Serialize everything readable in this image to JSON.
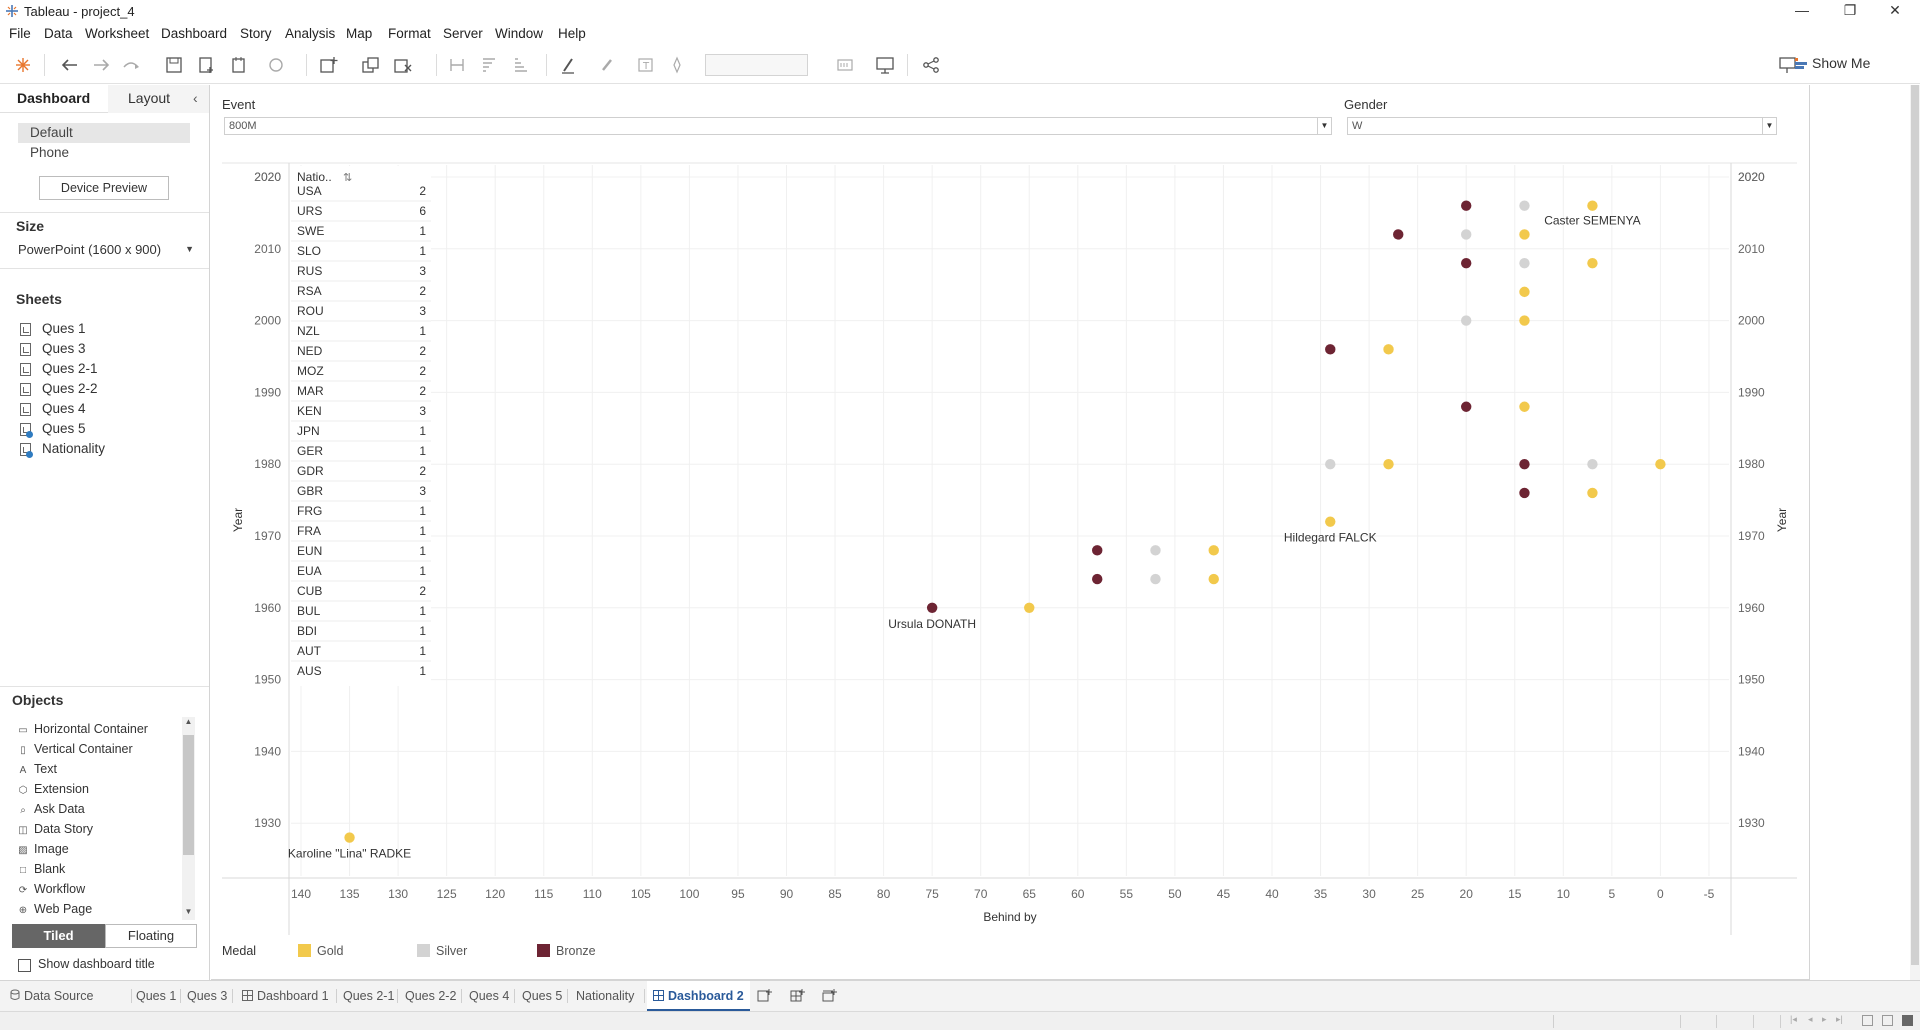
{
  "window": {
    "title": "Tableau - project_4",
    "min": "—",
    "max": "❐",
    "close": "✕"
  },
  "menu": [
    "File",
    "Data",
    "Worksheet",
    "Dashboard",
    "Story",
    "Analysis",
    "Map",
    "Format",
    "Server",
    "Window",
    "Help"
  ],
  "toolbar": {
    "show_me": "Show Me"
  },
  "left_pane": {
    "tab_dashboard": "Dashboard",
    "tab_layout": "Layout",
    "collapse_icon": "‹",
    "devices": [
      "Default",
      "Phone"
    ],
    "device_preview": "Device Preview",
    "size_heading": "Size",
    "size_value": "PowerPoint (1600 x 900)",
    "sheets_heading": "Sheets",
    "sheets": [
      "Ques 1",
      "Ques 3",
      "Ques 2-1",
      "Ques 2-2",
      "Ques 4",
      "Ques 5",
      "Nationality"
    ],
    "objects_heading": "Objects",
    "objects": [
      {
        "label": "Horizontal Container",
        "icon": "▭"
      },
      {
        "label": "Vertical Container",
        "icon": "▯"
      },
      {
        "label": "Text",
        "icon": "A"
      },
      {
        "label": "Extension",
        "icon": "⬡"
      },
      {
        "label": "Ask Data",
        "icon": "⌕"
      },
      {
        "label": "Data Story",
        "icon": "◫"
      },
      {
        "label": "Image",
        "icon": "▨"
      },
      {
        "label": "Blank",
        "icon": "□"
      },
      {
        "label": "Workflow",
        "icon": "⟳"
      },
      {
        "label": "Web Page",
        "icon": "⊕"
      }
    ],
    "tiled": "Tiled",
    "floating": "Floating",
    "show_title": "Show dashboard title"
  },
  "filters": {
    "event_label": "Event",
    "event_value": "800M",
    "gender_label": "Gender",
    "gender_value": "W"
  },
  "nat_table": {
    "header": "Natio..",
    "rows": [
      {
        "code": "USA",
        "n": "2"
      },
      {
        "code": "URS",
        "n": "6"
      },
      {
        "code": "SWE",
        "n": "1"
      },
      {
        "code": "SLO",
        "n": "1"
      },
      {
        "code": "RUS",
        "n": "3"
      },
      {
        "code": "RSA",
        "n": "2"
      },
      {
        "code": "ROU",
        "n": "3"
      },
      {
        "code": "NZL",
        "n": "1"
      },
      {
        "code": "NED",
        "n": "2"
      },
      {
        "code": "MOZ",
        "n": "2"
      },
      {
        "code": "MAR",
        "n": "2"
      },
      {
        "code": "KEN",
        "n": "3"
      },
      {
        "code": "JPN",
        "n": "1"
      },
      {
        "code": "GER",
        "n": "1"
      },
      {
        "code": "GDR",
        "n": "2"
      },
      {
        "code": "GBR",
        "n": "3"
      },
      {
        "code": "FRG",
        "n": "1"
      },
      {
        "code": "FRA",
        "n": "1"
      },
      {
        "code": "EUN",
        "n": "1"
      },
      {
        "code": "EUA",
        "n": "1"
      },
      {
        "code": "CUB",
        "n": "2"
      },
      {
        "code": "BUL",
        "n": "1"
      },
      {
        "code": "BDI",
        "n": "1"
      },
      {
        "code": "AUT",
        "n": "1"
      },
      {
        "code": "AUS",
        "n": "1"
      }
    ]
  },
  "chart_data": {
    "type": "scatter",
    "xlabel": "Behind by",
    "ylabel": "Year",
    "x_reversed": true,
    "xlim": [
      140,
      -5
    ],
    "ylim": [
      1920,
      2020
    ],
    "x_ticks": [
      140,
      135,
      130,
      125,
      120,
      115,
      110,
      105,
      100,
      95,
      90,
      85,
      80,
      75,
      70,
      65,
      60,
      55,
      50,
      45,
      40,
      35,
      30,
      25,
      20,
      15,
      10,
      5,
      0,
      -5
    ],
    "y_ticks": [
      1930,
      1940,
      1950,
      1960,
      1970,
      1980,
      1990,
      2000,
      2010,
      2020
    ],
    "legend_title": "Medal",
    "colors": {
      "Gold": "#f2c94c",
      "Silver": "#d3d3d3",
      "Bronze": "#6d2433"
    },
    "series": [
      {
        "name": "Gold",
        "points": [
          [
            135,
            1928
          ],
          [
            65,
            1960
          ],
          [
            46,
            1964
          ],
          [
            46,
            1968
          ],
          [
            34,
            1972
          ],
          [
            28,
            1980
          ],
          [
            28,
            1996
          ],
          [
            0,
            1980
          ],
          [
            7,
            1976
          ],
          [
            14,
            1988
          ],
          [
            14,
            2000
          ],
          [
            14,
            2004
          ],
          [
            7,
            2008
          ],
          [
            14,
            2012
          ],
          [
            7,
            2016
          ]
        ]
      },
      {
        "name": "Silver",
        "points": [
          [
            52,
            1964
          ],
          [
            52,
            1968
          ],
          [
            34,
            1980
          ],
          [
            7,
            1980
          ],
          [
            20,
            2000
          ],
          [
            14,
            2008
          ],
          [
            20,
            2012
          ],
          [
            14,
            2016
          ]
        ]
      },
      {
        "name": "Bronze",
        "points": [
          [
            75,
            1960
          ],
          [
            58,
            1964
          ],
          [
            58,
            1968
          ],
          [
            14,
            1976
          ],
          [
            14,
            1980
          ],
          [
            34,
            1996
          ],
          [
            20,
            1988
          ],
          [
            20,
            2008
          ],
          [
            27,
            2012
          ],
          [
            20,
            2016
          ]
        ]
      }
    ],
    "annotations": [
      {
        "text": "Karoline \"Lina\" RADKE",
        "x": 135,
        "y": 1928
      },
      {
        "text": "Ursula DONATH",
        "x": 75,
        "y": 1960
      },
      {
        "text": "Hildegard FALCK",
        "x": 34,
        "y": 1972
      },
      {
        "text": "Caster SEMENYA",
        "x": 7,
        "y": 2016
      }
    ]
  },
  "sheet_tabs": [
    "Data Source",
    "Ques 1",
    "Ques 3",
    "Dashboard 1",
    "Ques 2-1",
    "Ques 2-2",
    "Ques 4",
    "Ques 5",
    "Nationality",
    "Dashboard 2"
  ],
  "active_tab": "Dashboard 2"
}
